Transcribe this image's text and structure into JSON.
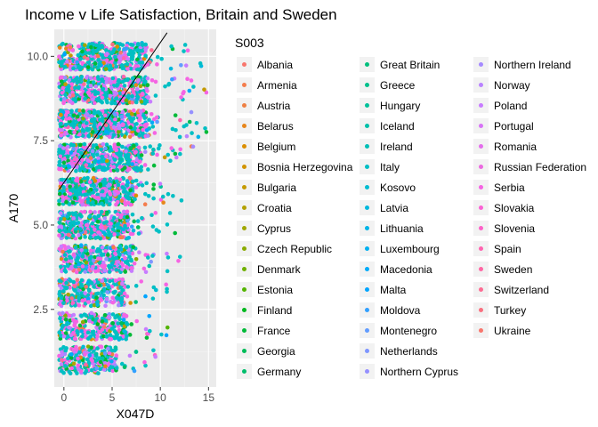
{
  "chart_data": {
    "type": "scatter",
    "title": "Income v Life Satisfaction, Britain and Sweden",
    "xlabel": "X047D",
    "ylabel": "A170",
    "xlim": [
      -1,
      15.8
    ],
    "ylim": [
      0.2,
      10.8
    ],
    "x_ticks": [
      0,
      5,
      10,
      15
    ],
    "x_tick_labels": [
      "0",
      "5",
      "10",
      "15"
    ],
    "y_ticks": [
      2.5,
      5.0,
      7.5,
      10.0
    ],
    "y_tick_labels": [
      "2.5",
      "5.0",
      "7.5",
      "10.0"
    ],
    "grid": true,
    "legend_title": "S003",
    "legend_position": "right",
    "legend_entries": [
      "Albania",
      "Armenia",
      "Austria",
      "Belarus",
      "Belgium",
      "Bosnia Herzegovina",
      "Bulgaria",
      "Croatia",
      "Cyprus",
      "Czech Republic",
      "Denmark",
      "Estonia",
      "Finland",
      "France",
      "Georgia",
      "Germany",
      "Great Britain",
      "Greece",
      "Hungary",
      "Iceland",
      "Ireland",
      "Italy",
      "Kosovo",
      "Latvia",
      "Lithuania",
      "Luxembourg",
      "Macedonia",
      "Malta",
      "Moldova",
      "Montenegro",
      "Netherlands",
      "Northern Cyprus",
      "Northern Ireland",
      "Norway",
      "Poland",
      "Portugal",
      "Romania",
      "Russian Federation",
      "Serbia",
      "Slovakia",
      "Slovenia",
      "Spain",
      "Sweden",
      "Switzerland",
      "Turkey",
      "Ukraine"
    ],
    "legend_colors": [
      "#F8766D",
      "#F47D4D",
      "#EE8044",
      "#E7861B",
      "#DB8E00",
      "#D19300",
      "#C49A00",
      "#B3A000",
      "#A0A600",
      "#8AAB00",
      "#6FB000",
      "#53B400",
      "#00B81F",
      "#00BA38",
      "#00BC59",
      "#00BE6C",
      "#00BF7D",
      "#00C08B",
      "#00C19A",
      "#00C0A9",
      "#00BFB6",
      "#00BEC4",
      "#00BCD0",
      "#00B8DD",
      "#00B4E7",
      "#00B0F0",
      "#00ABF9",
      "#00A5FF",
      "#32A0FF",
      "#619CFF",
      "#7F96FF",
      "#9590FF",
      "#A58AFF",
      "#B983FF",
      "#C77CFF",
      "#D774F6",
      "#E36EEC",
      "#EB6AE0",
      "#F564E3",
      "#FA62D4",
      "#FC62C8",
      "#FF64B0",
      "#FF67A4",
      "#FD6C93",
      "#F9707F",
      "#F8766D"
    ],
    "dominant_series_colors": [
      "#00BFC4",
      "#F564E3",
      "#C77CFF",
      "#00BA38"
    ],
    "trend_line": {
      "x": [
        -0.5,
        10.7
      ],
      "y": [
        6.05,
        10.7
      ]
    },
    "bands": [
      {
        "y": 1,
        "x_max": 9.5,
        "density": 40
      },
      {
        "y": 2,
        "x_max": 11.2,
        "density": 44
      },
      {
        "y": 3,
        "x_max": 10.8,
        "density": 48
      },
      {
        "y": 4,
        "x_max": 12.4,
        "density": 58
      },
      {
        "y": 5,
        "x_max": 11.6,
        "density": 60
      },
      {
        "y": 6,
        "x_max": 12.5,
        "density": 70
      },
      {
        "y": 7,
        "x_max": 13.8,
        "density": 80
      },
      {
        "y": 8,
        "x_max": 14.8,
        "density": 86
      },
      {
        "y": 9,
        "x_max": 14.9,
        "density": 78
      },
      {
        "y": 10,
        "x_max": 14.6,
        "density": 70
      }
    ]
  }
}
